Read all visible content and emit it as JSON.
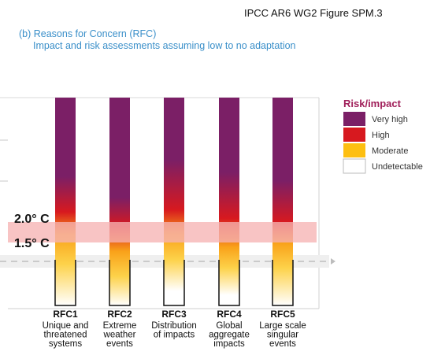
{
  "figure_ref": "IPCC AR6 WG2 Figure SPM.3",
  "panel_title": "(b) Reasons for Concern (RFC)",
  "panel_subtitle": "Impact and risk assessments assuming low to no adaptation",
  "colors": {
    "very_high": "#7b1f66",
    "high": "#d7191f",
    "moderate": "#fdbf11",
    "undetectable": "#ffffff",
    "warming_band": "#f6b4b4",
    "title_blue": "#3a8fc9",
    "legend_title": "#a01f5a"
  },
  "chart_data": {
    "type": "heatmap",
    "title": "",
    "xlabel": "",
    "ylabel": "",
    "x_order": "left_to_right",
    "warming_levels": [
      "2.0° C",
      "1.5° C"
    ],
    "legend": {
      "title": "Risk/impact",
      "entries": [
        {
          "label": "Very high",
          "color_key": "very_high"
        },
        {
          "label": "High",
          "color_key": "high"
        },
        {
          "label": "Moderate",
          "color_key": "moderate"
        },
        {
          "label": "Undetectable",
          "color_key": "undetectable"
        }
      ]
    },
    "bars": [
      {
        "id": "RFC1",
        "desc": [
          "Unique and",
          "threatened",
          "systems"
        ],
        "stops": [
          [
            0.0,
            "#7b1f66"
          ],
          [
            0.38,
            "#7b1f66"
          ],
          [
            0.55,
            "#d7191f"
          ],
          [
            0.66,
            "#f9a21a"
          ],
          [
            0.8,
            "#fdd24a"
          ],
          [
            1.0,
            "#ffffff"
          ]
        ]
      },
      {
        "id": "RFC2",
        "desc": [
          "Extreme",
          "weather",
          "events"
        ],
        "stops": [
          [
            0.0,
            "#7b1f66"
          ],
          [
            0.48,
            "#7b1f66"
          ],
          [
            0.62,
            "#d7191f"
          ],
          [
            0.74,
            "#f9a21a"
          ],
          [
            0.86,
            "#fdd24a"
          ],
          [
            1.0,
            "#ffffff"
          ]
        ]
      },
      {
        "id": "RFC3",
        "desc": [
          "Distribution",
          "of impacts"
        ],
        "stops": [
          [
            0.0,
            "#7b1f66"
          ],
          [
            0.3,
            "#7b1f66"
          ],
          [
            0.54,
            "#d7191f"
          ],
          [
            0.66,
            "#f9a21a"
          ],
          [
            0.78,
            "#fdd24a"
          ],
          [
            0.93,
            "#ffffff"
          ],
          [
            1.0,
            "#ffffff"
          ]
        ]
      },
      {
        "id": "RFC4",
        "desc": [
          "Global",
          "aggregate",
          "impacts"
        ],
        "stops": [
          [
            0.0,
            "#7b1f66"
          ],
          [
            0.36,
            "#7b1f66"
          ],
          [
            0.58,
            "#d7191f"
          ],
          [
            0.72,
            "#f9a21a"
          ],
          [
            0.82,
            "#fdd24a"
          ],
          [
            0.95,
            "#ffffff"
          ],
          [
            1.0,
            "#ffffff"
          ]
        ]
      },
      {
        "id": "RFC5",
        "desc": [
          "Large scale",
          "singular",
          "events"
        ],
        "stops": [
          [
            0.0,
            "#7b1f66"
          ],
          [
            0.4,
            "#7b1f66"
          ],
          [
            0.6,
            "#d7191f"
          ],
          [
            0.7,
            "#f9a21a"
          ],
          [
            0.82,
            "#fdd24a"
          ],
          [
            1.0,
            "#ffffff"
          ]
        ]
      }
    ]
  }
}
